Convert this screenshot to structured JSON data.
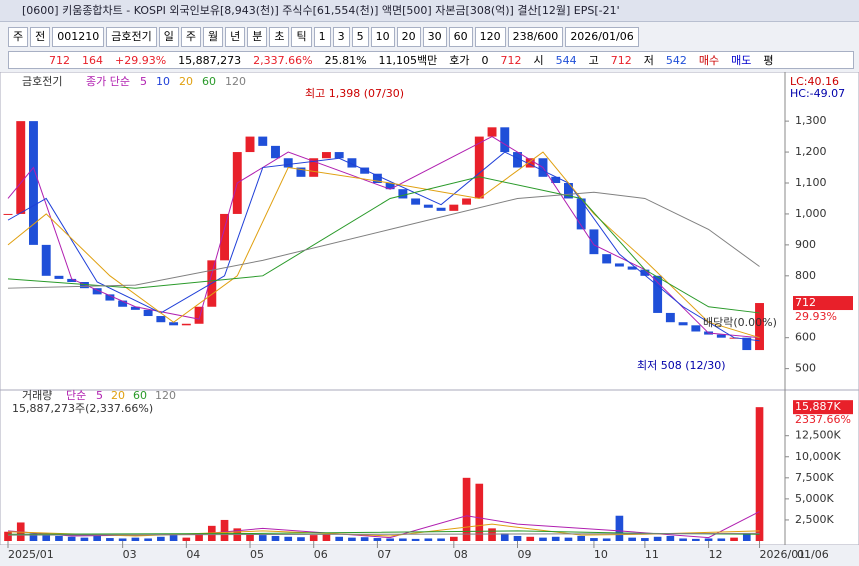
{
  "window_title": "[0600] 키움종합차트 - KOSPI 외국인보유[8,943(천)] 주식수[61,554(천)] 액면[500] 자본금[308(억)] 결산[12월] EPS[-21'",
  "toolbar": [
    "주",
    "전",
    "001210",
    "금호전기",
    "일",
    "주",
    "월",
    "년",
    "분",
    "초",
    "틱",
    "1",
    "3",
    "5",
    "10",
    "20",
    "30",
    "60",
    "120",
    "238/600",
    "2026/01/06"
  ],
  "info": [
    "712",
    "164",
    "+29.93%",
    "15,887,273",
    "2,337.66%",
    "25.81%",
    "11,105백만",
    "호가",
    "0",
    "712",
    "시",
    "544",
    "고",
    "712",
    "저",
    "542",
    "매수",
    "매도",
    "평"
  ],
  "chart_data": [
    {
      "type": "candlestick",
      "title": "금호전기",
      "legend_title": "종가 단순",
      "close": [
        1000,
        1300,
        900,
        800,
        790,
        780,
        760,
        740,
        720,
        700,
        690,
        670,
        650,
        640,
        645,
        700,
        850,
        1000,
        1200,
        1250,
        1220,
        1180,
        1150,
        1120,
        1180,
        1200,
        1180,
        1150,
        1130,
        1100,
        1080,
        1050,
        1030,
        1020,
        1010,
        1030,
        1050,
        1250,
        1280,
        1200,
        1150,
        1180,
        1120,
        1100,
        1050,
        950,
        870,
        840,
        830,
        820,
        800,
        680,
        650,
        640,
        620,
        610,
        600,
        600,
        560,
        712
      ],
      "up_color": "#e8202a",
      "down_color": "#1f4fd8",
      "series": [
        {
          "name": "5",
          "color": "#b01fb0",
          "x": [
            0,
            2,
            5,
            10,
            15,
            18,
            22,
            30,
            38,
            42,
            46,
            50,
            55,
            59
          ],
          "values": [
            1050,
            1150,
            790,
            700,
            660,
            1100,
            1200,
            1080,
            1250,
            1150,
            900,
            820,
            615,
            600
          ]
        },
        {
          "name": "10",
          "color": "#1f3fd8",
          "x": [
            0,
            3,
            7,
            12,
            17,
            20,
            26,
            34,
            39,
            44,
            48,
            53,
            57,
            59
          ],
          "values": [
            980,
            1050,
            780,
            680,
            800,
            1150,
            1180,
            1030,
            1200,
            1100,
            870,
            700,
            600,
            590
          ]
        },
        {
          "name": "20",
          "color": "#e0a010",
          "x": [
            0,
            3,
            8,
            13,
            18,
            22,
            30,
            37,
            42,
            46,
            50,
            55,
            59
          ],
          "values": [
            900,
            1000,
            800,
            650,
            800,
            1150,
            1100,
            1050,
            1200,
            1000,
            850,
            650,
            600
          ]
        },
        {
          "name": "60",
          "color": "#2a9a2a",
          "x": [
            0,
            10,
            20,
            30,
            37,
            45,
            50,
            55,
            59
          ],
          "values": [
            790,
            760,
            800,
            1050,
            1120,
            1050,
            820,
            700,
            680
          ]
        },
        {
          "name": "120",
          "color": "#808080",
          "x": [
            0,
            10,
            20,
            30,
            40,
            46,
            50,
            55,
            59
          ],
          "values": [
            760,
            770,
            850,
            950,
            1050,
            1070,
            1050,
            950,
            830
          ]
        }
      ],
      "xlim": [
        0,
        61
      ],
      "xticks": [
        {
          "value": 0,
          "label": "2025/01"
        },
        {
          "value": 9,
          "label": "03"
        },
        {
          "value": 14,
          "label": "04"
        },
        {
          "value": 19,
          "label": "05"
        },
        {
          "value": 24,
          "label": "06"
        },
        {
          "value": 29,
          "label": "07"
        },
        {
          "value": 35,
          "label": "08"
        },
        {
          "value": 40,
          "label": "09"
        },
        {
          "value": 46,
          "label": "10"
        },
        {
          "value": 50,
          "label": "11"
        },
        {
          "value": 55,
          "label": "12"
        },
        {
          "value": 59,
          "label": "2026/01"
        }
      ],
      "extra_x_label": "01/06",
      "ylim": [
        460,
        1420
      ],
      "yticks": [
        500,
        600,
        800,
        900,
        {
          "value": 1000,
          "label": "1,000"
        },
        {
          "value": 1100,
          "label": "1,100"
        },
        {
          "value": 1200,
          "label": "1,200"
        },
        {
          "value": 1300,
          "label": "1,300"
        }
      ],
      "annotations": [
        "최고 1,398 (07/30)",
        "최저 508 (12/30)",
        "배당락(0.00%)",
        "LC:40.16",
        "HC:-49.07"
      ],
      "last_price": 712,
      "last_labels": [
        "712",
        "29.93%"
      ]
    },
    {
      "type": "bar",
      "title": "거래량",
      "legend_title": "단순",
      "subtitle": "15,887,273주(2,337.66%)",
      "color": "#e8202a",
      "values": [
        1100,
        2200,
        900,
        700,
        600,
        500,
        400,
        600,
        350,
        300,
        400,
        300,
        500,
        700,
        400,
        900,
        1800,
        2500,
        1500,
        900,
        700,
        600,
        500,
        450,
        700,
        800,
        500,
        400,
        450,
        350,
        300,
        300,
        250,
        300,
        300,
        500,
        7500,
        6800,
        1500,
        900,
        600,
        500,
        400,
        500,
        400,
        600,
        350,
        300,
        3000,
        400,
        350,
        500,
        600,
        300,
        250,
        300,
        300,
        400,
        900,
        15887
      ],
      "series": [
        {
          "name": "5",
          "color": "#b01fb0",
          "x": [
            0,
            5,
            15,
            20,
            30,
            36,
            40,
            48,
            55,
            59
          ],
          "values": [
            1200,
            600,
            800,
            1500,
            400,
            3000,
            2000,
            1200,
            400,
            3500
          ]
        },
        {
          "name": "20",
          "color": "#e0a010",
          "x": [
            0,
            10,
            20,
            30,
            38,
            45,
            50,
            59
          ],
          "values": [
            1100,
            600,
            1200,
            600,
            2000,
            700,
            800,
            1200
          ]
        },
        {
          "name": "60",
          "color": "#2a9a2a",
          "x": [
            0,
            20,
            40,
            50,
            59
          ],
          "values": [
            800,
            900,
            1200,
            900,
            800
          ]
        },
        {
          "name": "120",
          "color": "#808080",
          "x": [
            0,
            30,
            59
          ],
          "values": [
            700,
            800,
            900
          ]
        }
      ],
      "ylim": [
        0,
        16500
      ],
      "yticks": [
        {
          "value": 2500,
          "label": "2,500K"
        },
        {
          "value": 5000,
          "label": "5,000K"
        },
        {
          "value": 7500,
          "label": "7,500K"
        },
        {
          "value": 10000,
          "label": "10,000K"
        },
        {
          "value": 12500,
          "label": "12,500K"
        }
      ],
      "last_labels": [
        "15,887K",
        "2337.66%"
      ]
    }
  ]
}
